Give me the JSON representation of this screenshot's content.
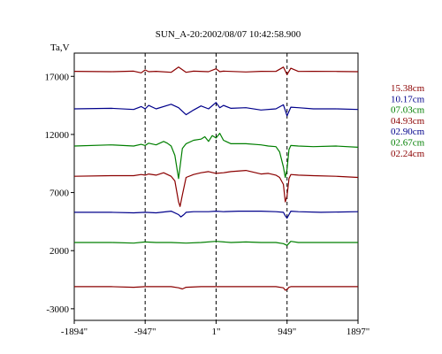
{
  "chart_data": {
    "type": "line",
    "title": "SUN_A-20:2002/08/07 10:42:58.900",
    "ylabel": "Ta,V",
    "xlabel": "",
    "xlim": [
      -1894,
      1897
    ],
    "ylim": [
      -4000,
      19000
    ],
    "x_ticks": [
      {
        "value": -1894,
        "label": "-1894\""
      },
      {
        "value": -947,
        "label": "-947\""
      },
      {
        "value": 1,
        "label": "1\""
      },
      {
        "value": 949,
        "label": "949\""
      },
      {
        "value": 1897,
        "label": "1897\""
      }
    ],
    "y_ticks": [
      {
        "value": 17000,
        "label": "17000"
      },
      {
        "value": 12000,
        "label": "12000"
      },
      {
        "value": 7000,
        "label": "7000"
      },
      {
        "value": 2000,
        "label": "2000"
      },
      {
        "value": -3000,
        "label": "-3000"
      }
    ],
    "vlines": [
      -947,
      1,
      949
    ],
    "legend_position": "right",
    "series": [
      {
        "name": "15.38cm",
        "color": "#8b0000",
        "x": [
          -1894,
          -1400,
          -1100,
          -1000,
          -947,
          -900,
          -800,
          -600,
          -500,
          -400,
          -300,
          -100,
          0,
          50,
          100,
          200,
          400,
          600,
          800,
          900,
          949,
          1000,
          1100,
          1300,
          1600,
          1897
        ],
        "y": [
          17430,
          17400,
          17450,
          17300,
          17550,
          17400,
          17430,
          17350,
          17800,
          17350,
          17450,
          17400,
          17650,
          17400,
          17450,
          17420,
          17380,
          17430,
          17420,
          17800,
          17150,
          17700,
          17420,
          17430,
          17420,
          17400
        ]
      },
      {
        "name": "10.17cm",
        "color": "#00008b",
        "x": [
          -1894,
          -1400,
          -1100,
          -1000,
          -947,
          -900,
          -800,
          -600,
          -500,
          -400,
          -300,
          -200,
          -100,
          0,
          50,
          100,
          200,
          400,
          600,
          800,
          900,
          949,
          1000,
          1100,
          1300,
          1600,
          1897
        ],
        "y": [
          14200,
          14250,
          14150,
          14400,
          14200,
          14500,
          14200,
          14600,
          14300,
          13700,
          14100,
          14450,
          14200,
          14750,
          14300,
          14500,
          14250,
          14300,
          14100,
          14200,
          14550,
          13600,
          14350,
          14300,
          14200,
          14200,
          14150
        ]
      },
      {
        "name": "07.03cm",
        "color": "#007f00",
        "x": [
          -1894,
          -1400,
          -1100,
          -1000,
          -947,
          -900,
          -800,
          -700,
          -650,
          -600,
          -550,
          -500,
          -450,
          -400,
          -300,
          -200,
          -150,
          -100,
          -50,
          0,
          50,
          100,
          200,
          400,
          600,
          700,
          800,
          850,
          900,
          925,
          949,
          975,
          1000,
          1100,
          1300,
          1600,
          1897
        ],
        "y": [
          11000,
          11100,
          11000,
          11150,
          11050,
          11250,
          11100,
          11400,
          11250,
          11000,
          10200,
          8200,
          10800,
          11200,
          11500,
          11600,
          11800,
          11400,
          11900,
          11700,
          12100,
          11500,
          11200,
          11200,
          11100,
          11000,
          10950,
          10500,
          9200,
          8300,
          9000,
          10700,
          11050,
          11000,
          10950,
          11000,
          10900
        ]
      },
      {
        "name": "04.93cm",
        "color": "#8b0000",
        "x": [
          -1894,
          -1400,
          -1100,
          -1000,
          -947,
          -900,
          -800,
          -700,
          -600,
          -550,
          -500,
          -480,
          -450,
          -400,
          -300,
          -200,
          -100,
          0,
          100,
          200,
          400,
          600,
          700,
          800,
          850,
          900,
          925,
          949,
          975,
          1000,
          1100,
          1300,
          1600,
          1897
        ],
        "y": [
          8400,
          8450,
          8450,
          8550,
          8500,
          8600,
          8500,
          8700,
          8400,
          8000,
          6200,
          5800,
          6800,
          8300,
          8550,
          8700,
          8800,
          8650,
          8700,
          8800,
          8900,
          8600,
          8650,
          8500,
          8300,
          7700,
          6200,
          6700,
          8200,
          8550,
          8500,
          8450,
          8400,
          8300
        ]
      },
      {
        "name": "02.90cm",
        "color": "#00008b",
        "x": [
          -1894,
          -1400,
          -1100,
          -947,
          -800,
          -600,
          -500,
          -470,
          -430,
          -400,
          -300,
          -100,
          0,
          100,
          300,
          600,
          800,
          900,
          925,
          949,
          975,
          1000,
          1100,
          1400,
          1897
        ],
        "y": [
          5300,
          5300,
          5250,
          5300,
          5250,
          5400,
          5100,
          4900,
          5100,
          5300,
          5350,
          5350,
          5400,
          5350,
          5400,
          5400,
          5350,
          5300,
          5000,
          4800,
          5100,
          5400,
          5350,
          5300,
          5350
        ]
      },
      {
        "name": "02.67cm",
        "color": "#007f00",
        "x": [
          -1894,
          -1400,
          -1100,
          -947,
          -800,
          -600,
          -400,
          -200,
          0,
          200,
          400,
          600,
          800,
          900,
          949,
          1000,
          1100,
          1400,
          1897
        ],
        "y": [
          2700,
          2700,
          2650,
          2750,
          2700,
          2700,
          2650,
          2700,
          2800,
          2700,
          2750,
          2700,
          2700,
          2600,
          2450,
          2800,
          2700,
          2700,
          2700
        ]
      },
      {
        "name": "02.24cm",
        "color": "#8b0000",
        "x": [
          -1894,
          -1400,
          -1100,
          -947,
          -800,
          -600,
          -500,
          -450,
          -400,
          -200,
          0,
          200,
          400,
          600,
          800,
          900,
          925,
          949,
          975,
          1000,
          1100,
          1400,
          1897
        ],
        "y": [
          -1100,
          -1100,
          -1150,
          -1100,
          -1100,
          -1100,
          -1200,
          -1300,
          -1150,
          -1100,
          -1100,
          -1100,
          -1100,
          -1100,
          -1100,
          -1200,
          -1400,
          -1350,
          -1150,
          -1100,
          -1100,
          -1100,
          -1100
        ]
      }
    ]
  }
}
